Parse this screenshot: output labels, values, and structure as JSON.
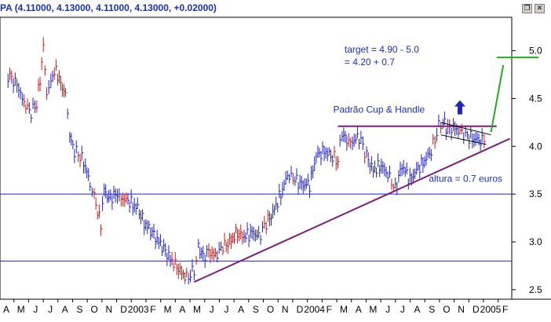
{
  "window": {
    "title_fragment": "PA",
    "ohlc_text": "(4.11000, 4.13000, 4.11000, 4.13000, +0.02000)",
    "restore_icon": "restore-window-icon",
    "close_icon": "close-window-icon"
  },
  "chart_data": {
    "type": "ohlc-bar",
    "title": "",
    "xlabel": "",
    "ylabel": "",
    "ylim": [
      2.4,
      5.35
    ],
    "y_ticks": [
      "5.0",
      "4.5",
      "4.0",
      "3.5",
      "3.0",
      "2.5"
    ],
    "x_tick_labels": [
      "A",
      "M",
      "J",
      "J",
      "A",
      "S",
      "O",
      "N",
      "D",
      "2003",
      "F",
      "M",
      "A",
      "M",
      "J",
      "J",
      "A",
      "S",
      "O",
      "N",
      "D",
      "2004",
      "F",
      "M",
      "A",
      "M",
      "J",
      "J",
      "A",
      "S",
      "O",
      "N",
      "D",
      "2005",
      "F"
    ],
    "price_color": "#1f23c8",
    "series": [
      {
        "points": [
          [
            "2002-04-01",
            4.75
          ],
          [
            "2002-04-20",
            4.65
          ],
          [
            "2002-05-05",
            4.45
          ],
          [
            "2002-05-20",
            4.35
          ],
          [
            "2002-06-01",
            4.45
          ],
          [
            "2002-06-08",
            4.7
          ],
          [
            "2002-06-15",
            5.05
          ],
          [
            "2002-06-22",
            4.55
          ],
          [
            "2002-07-01",
            4.7
          ],
          [
            "2002-07-12",
            4.8
          ],
          [
            "2002-07-22",
            4.65
          ],
          [
            "2002-08-01",
            4.55
          ],
          [
            "2002-08-10",
            4.1
          ],
          [
            "2002-08-20",
            3.95
          ],
          [
            "2002-09-01",
            3.9
          ],
          [
            "2002-09-12",
            3.8
          ],
          [
            "2002-09-22",
            3.6
          ],
          [
            "2002-10-01",
            3.5
          ],
          [
            "2002-10-08",
            3.3
          ],
          [
            "2002-10-15",
            3.2
          ],
          [
            "2002-10-22",
            3.55
          ],
          [
            "2002-11-01",
            3.45
          ],
          [
            "2002-11-15",
            3.5
          ],
          [
            "2002-12-01",
            3.45
          ],
          [
            "2002-12-15",
            3.42
          ],
          [
            "2003-01-01",
            3.35
          ],
          [
            "2003-01-15",
            3.2
          ],
          [
            "2003-02-01",
            3.1
          ],
          [
            "2003-02-15",
            3.0
          ],
          [
            "2003-03-01",
            2.9
          ],
          [
            "2003-03-15",
            2.8
          ],
          [
            "2003-04-01",
            2.7
          ],
          [
            "2003-04-15",
            2.62
          ],
          [
            "2003-05-01",
            2.7
          ],
          [
            "2003-05-10",
            2.95
          ],
          [
            "2003-05-20",
            2.85
          ],
          [
            "2003-06-01",
            2.9
          ],
          [
            "2003-06-15",
            2.85
          ],
          [
            "2003-07-01",
            2.95
          ],
          [
            "2003-07-15",
            3.0
          ],
          [
            "2003-08-01",
            3.1
          ],
          [
            "2003-08-15",
            3.05
          ],
          [
            "2003-09-01",
            3.1
          ],
          [
            "2003-09-15",
            3.05
          ],
          [
            "2003-10-01",
            3.2
          ],
          [
            "2003-10-15",
            3.3
          ],
          [
            "2003-11-01",
            3.5
          ],
          [
            "2003-11-15",
            3.7
          ],
          [
            "2003-12-01",
            3.65
          ],
          [
            "2003-12-15",
            3.6
          ],
          [
            "2004-01-01",
            3.6
          ],
          [
            "2004-01-15",
            3.9
          ],
          [
            "2004-02-01",
            3.95
          ],
          [
            "2004-02-15",
            3.9
          ],
          [
            "2004-03-01",
            3.85
          ],
          [
            "2004-03-10",
            4.15
          ],
          [
            "2004-03-20",
            4.05
          ],
          [
            "2004-04-01",
            4.05
          ],
          [
            "2004-04-15",
            4.1
          ],
          [
            "2004-05-01",
            3.9
          ],
          [
            "2004-05-15",
            3.75
          ],
          [
            "2004-06-01",
            3.8
          ],
          [
            "2004-06-15",
            3.7
          ],
          [
            "2004-07-01",
            3.55
          ],
          [
            "2004-07-15",
            3.8
          ],
          [
            "2004-08-01",
            3.65
          ],
          [
            "2004-08-15",
            3.75
          ],
          [
            "2004-09-01",
            3.85
          ],
          [
            "2004-09-15",
            3.95
          ],
          [
            "2004-10-01",
            4.2
          ],
          [
            "2004-10-10",
            4.25
          ],
          [
            "2004-10-20",
            4.18
          ],
          [
            "2004-11-01",
            4.2
          ],
          [
            "2004-11-15",
            4.15
          ],
          [
            "2004-12-01",
            4.1
          ],
          [
            "2004-12-15",
            4.08
          ],
          [
            "2005-01-01",
            4.05
          ],
          [
            "2005-01-10",
            4.13
          ]
        ]
      }
    ],
    "horizontal_lines": [
      {
        "y": 3.5,
        "color": "#1f23c8"
      },
      {
        "y": 2.8,
        "color": "#1f23c8"
      }
    ],
    "trendlines": [
      {
        "x1": "2003-05-01",
        "y1": 2.58,
        "x2": "2005-03-01",
        "y2": 4.08,
        "color": "#7a1e7a"
      },
      {
        "x1": "2004-03-01",
        "y1": 4.21,
        "x2": "2005-02-01",
        "y2": 4.21,
        "color": "#7a1e7a"
      },
      {
        "x1": "2005-02-01",
        "y1": 4.93,
        "x2": "2005-05-01",
        "y2": 4.93,
        "color": "#22aa22"
      },
      {
        "x1": "2005-01-20",
        "y1": 4.15,
        "x2": "2005-02-15",
        "y2": 4.85,
        "color": "#22aa22"
      },
      {
        "x1": "2004-10-05",
        "y1": 4.25,
        "x2": "2005-01-20",
        "y2": 4.12,
        "color": "#000000"
      },
      {
        "x1": "2004-10-05",
        "y1": 4.12,
        "x2": "2005-01-10",
        "y2": 4.02,
        "color": "#000000"
      }
    ],
    "annotations": [
      {
        "text": "target = 4.90 - 5.0",
        "x": "2004-03-15",
        "y": 4.98
      },
      {
        "text": "= 4.20 + 0.7",
        "x": "2004-03-15",
        "y": 4.85
      },
      {
        "text": "Padrão Cup & Handle",
        "x": "2004-02-20",
        "y": 4.35
      },
      {
        "text": "altura = 0.7 euros",
        "x": "2004-09-10",
        "y": 3.63
      }
    ],
    "arrow": {
      "x": "2004-11-15",
      "y": 4.4,
      "color": "#1f23c8",
      "icon": "up-arrow-icon"
    }
  }
}
